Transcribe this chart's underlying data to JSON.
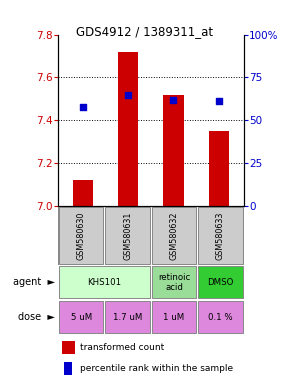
{
  "title": "GDS4912 / 1389311_at",
  "samples": [
    "GSM580630",
    "GSM580631",
    "GSM580632",
    "GSM580633"
  ],
  "bar_values": [
    7.12,
    7.72,
    7.52,
    7.35
  ],
  "percentile_values": [
    58,
    65,
    62,
    61
  ],
  "ylim_left": [
    7.0,
    7.8
  ],
  "ylim_right": [
    0,
    100
  ],
  "yticks_left": [
    7.0,
    7.2,
    7.4,
    7.6,
    7.8
  ],
  "yticks_right": [
    0,
    25,
    50,
    75,
    100
  ],
  "bar_color": "#cc0000",
  "dot_color": "#0000cc",
  "dose_labels": [
    "5 uM",
    "1.7 uM",
    "1 uM",
    "0.1 %"
  ],
  "dose_color": "#dd88dd",
  "sample_bg_color": "#cccccc",
  "left_label_color": "#cc0000",
  "right_label_color": "#0000cc",
  "legend_bar_label": "transformed count",
  "legend_dot_label": "percentile rank within the sample",
  "agent_row_label": "agent",
  "dose_row_label": "dose",
  "agent_spans": [
    {
      "label": "KHS101",
      "start": 0,
      "end": 2,
      "color": "#ccffcc"
    },
    {
      "label": "retinoic\nacid",
      "start": 2,
      "end": 3,
      "color": "#99dd99"
    },
    {
      "label": "DMSO",
      "start": 3,
      "end": 4,
      "color": "#33cc33"
    }
  ]
}
